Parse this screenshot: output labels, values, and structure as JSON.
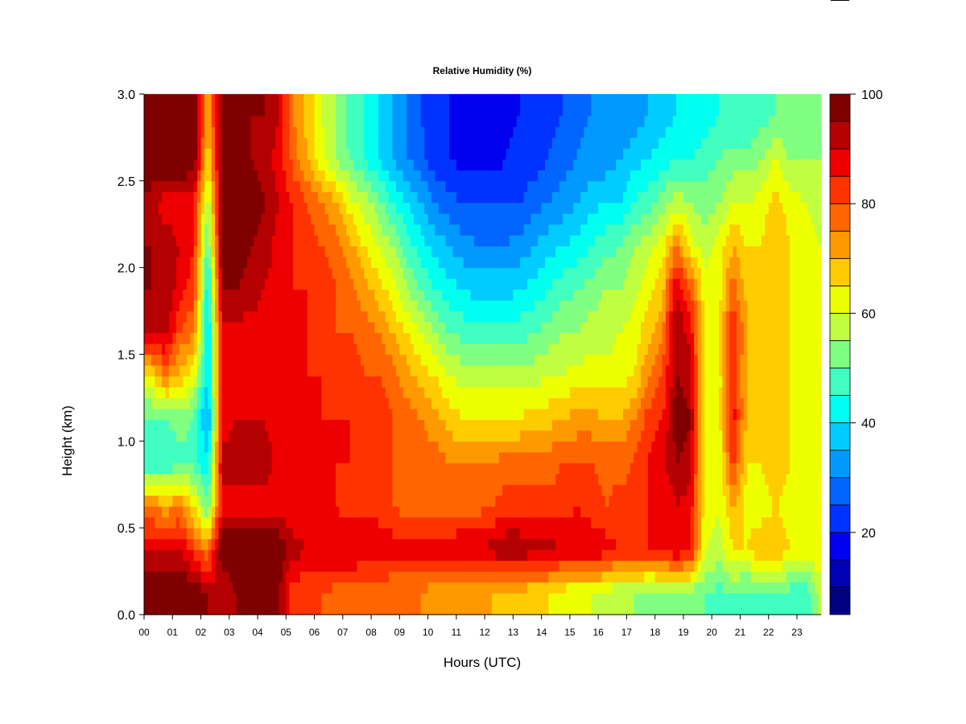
{
  "chart_data": {
    "type": "heatmap",
    "title": "Relative Humidity (%)",
    "xlabel": "Hours (UTC)",
    "ylabel": "Height (km)",
    "xlim": [
      0,
      23.85
    ],
    "ylim": [
      0,
      3.0
    ],
    "x_ticks": [
      "00",
      "01",
      "02",
      "03",
      "04",
      "05",
      "06",
      "07",
      "08",
      "09",
      "10",
      "11",
      "12",
      "13",
      "14",
      "15",
      "16",
      "17",
      "18",
      "19",
      "20",
      "21",
      "22",
      "23"
    ],
    "y_ticks": [
      "0.0",
      "0.5",
      "1.0",
      "1.5",
      "2.0",
      "2.5",
      "3.0"
    ],
    "x_step_hours": 0.5,
    "y_centers_km": [
      0.125,
      0.375,
      0.625,
      0.875,
      1.125,
      1.375,
      1.625,
      1.875,
      2.125,
      2.375,
      2.625,
      2.875
    ],
    "z": [
      [
        100,
        100,
        100,
        100,
        95,
        90,
        95,
        95,
        98,
        95,
        82,
        80,
        80,
        78,
        78,
        75,
        75,
        75,
        75,
        75,
        72,
        72,
        70,
        70,
        70,
        68,
        68,
        65,
        65,
        62,
        60,
        60,
        58,
        55,
        55,
        52,
        52,
        52,
        52,
        50,
        48,
        50,
        48,
        50,
        48,
        48,
        45,
        55
      ],
      [
        90,
        90,
        90,
        82,
        75,
        100,
        100,
        100,
        100,
        100,
        92,
        90,
        90,
        90,
        90,
        90,
        90,
        88,
        88,
        88,
        88,
        88,
        90,
        90,
        92,
        95,
        95,
        92,
        92,
        90,
        90,
        90,
        88,
        85,
        85,
        85,
        88,
        90,
        88,
        60,
        58,
        65,
        65,
        70,
        70,
        65,
        62,
        65
      ],
      [
        75,
        72,
        75,
        65,
        50,
        88,
        88,
        88,
        88,
        88,
        85,
        85,
        85,
        85,
        82,
        82,
        82,
        80,
        78,
        78,
        78,
        78,
        78,
        78,
        80,
        82,
        82,
        82,
        82,
        82,
        85,
        82,
        80,
        82,
        82,
        85,
        85,
        90,
        88,
        62,
        60,
        70,
        62,
        62,
        65,
        62,
        60,
        62
      ],
      [
        45,
        45,
        48,
        48,
        40,
        92,
        92,
        92,
        92,
        88,
        85,
        85,
        85,
        85,
        85,
        82,
        82,
        80,
        80,
        78,
        78,
        75,
        75,
        75,
        75,
        78,
        78,
        78,
        78,
        80,
        80,
        80,
        78,
        78,
        80,
        85,
        88,
        95,
        92,
        62,
        62,
        82,
        65,
        65,
        68,
        65,
        62,
        60
      ],
      [
        48,
        50,
        52,
        50,
        32,
        88,
        90,
        90,
        90,
        88,
        85,
        85,
        85,
        85,
        85,
        82,
        82,
        80,
        78,
        75,
        72,
        68,
        65,
        65,
        65,
        65,
        65,
        68,
        68,
        70,
        72,
        72,
        70,
        70,
        75,
        82,
        85,
        98,
        95,
        62,
        62,
        88,
        68,
        65,
        68,
        65,
        62,
        60
      ],
      [
        65,
        75,
        68,
        62,
        38,
        88,
        88,
        88,
        88,
        85,
        85,
        85,
        85,
        82,
        82,
        80,
        80,
        78,
        72,
        68,
        65,
        60,
        58,
        58,
        58,
        58,
        58,
        58,
        60,
        60,
        62,
        62,
        62,
        62,
        65,
        75,
        80,
        95,
        92,
        62,
        62,
        85,
        68,
        65,
        68,
        65,
        62,
        60
      ],
      [
        90,
        92,
        80,
        75,
        38,
        88,
        88,
        88,
        88,
        85,
        85,
        85,
        82,
        80,
        80,
        78,
        75,
        70,
        65,
        60,
        55,
        50,
        48,
        48,
        48,
        48,
        48,
        50,
        52,
        55,
        55,
        58,
        58,
        60,
        62,
        68,
        75,
        95,
        88,
        65,
        65,
        85,
        70,
        68,
        70,
        65,
        62,
        60
      ],
      [
        95,
        95,
        88,
        82,
        40,
        95,
        95,
        92,
        90,
        88,
        85,
        85,
        82,
        80,
        78,
        72,
        68,
        62,
        55,
        50,
        45,
        42,
        40,
        38,
        38,
        38,
        40,
        42,
        45,
        48,
        50,
        52,
        55,
        55,
        58,
        62,
        68,
        90,
        80,
        62,
        62,
        78,
        68,
        68,
        70,
        65,
        62,
        60
      ],
      [
        95,
        92,
        90,
        85,
        48,
        98,
        98,
        95,
        92,
        88,
        85,
        82,
        80,
        78,
        72,
        65,
        60,
        55,
        48,
        42,
        38,
        35,
        32,
        30,
        30,
        30,
        32,
        35,
        38,
        40,
        42,
        45,
        48,
        50,
        55,
        58,
        62,
        75,
        62,
        58,
        62,
        70,
        65,
        65,
        70,
        65,
        62,
        60
      ],
      [
        92,
        88,
        88,
        85,
        55,
        98,
        100,
        98,
        95,
        90,
        85,
        80,
        75,
        70,
        62,
        58,
        52,
        45,
        40,
        35,
        30,
        27,
        25,
        25,
        25,
        25,
        25,
        28,
        30,
        32,
        35,
        38,
        40,
        40,
        45,
        48,
        52,
        58,
        55,
        52,
        55,
        60,
        60,
        62,
        68,
        62,
        60,
        58
      ],
      [
        100,
        100,
        100,
        100,
        65,
        98,
        98,
        95,
        92,
        88,
        78,
        70,
        62,
        55,
        50,
        45,
        40,
        35,
        30,
        27,
        22,
        20,
        18,
        18,
        18,
        20,
        22,
        22,
        25,
        28,
        30,
        32,
        32,
        35,
        38,
        40,
        42,
        45,
        45,
        48,
        50,
        52,
        52,
        55,
        60,
        55,
        55,
        55
      ],
      [
        100,
        100,
        100,
        100,
        70,
        98,
        98,
        95,
        95,
        90,
        75,
        68,
        60,
        55,
        48,
        45,
        40,
        35,
        30,
        25,
        22,
        20,
        18,
        17,
        17,
        18,
        20,
        20,
        22,
        25,
        28,
        30,
        30,
        30,
        32,
        35,
        38,
        40,
        40,
        42,
        45,
        45,
        45,
        48,
        50,
        50,
        50,
        52
      ]
    ],
    "colorbar": {
      "levels": [
        5,
        10,
        15,
        20,
        25,
        30,
        35,
        40,
        45,
        50,
        55,
        60,
        65,
        70,
        75,
        80,
        85,
        90,
        95,
        100
      ],
      "tick_labels": [
        "20",
        "40",
        "60",
        "80",
        "100"
      ],
      "tick_values": [
        20,
        40,
        60,
        80,
        100
      ],
      "colors": [
        "#000080",
        "#0000b4",
        "#0000ee",
        "#0033ff",
        "#0066ff",
        "#0099ff",
        "#00ccff",
        "#00ffee",
        "#40ffc0",
        "#80ff80",
        "#c0ff40",
        "#eeff00",
        "#ffcc00",
        "#ff9900",
        "#ff6600",
        "#ff3300",
        "#ee0000",
        "#b40000",
        "#800000"
      ]
    }
  }
}
